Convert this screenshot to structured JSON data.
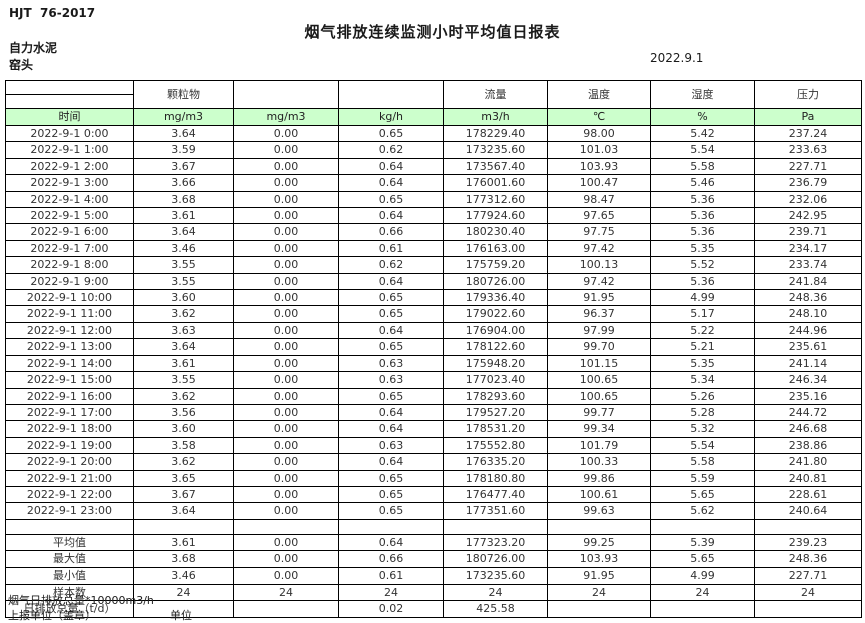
{
  "page": {
    "standard_code": "HJT  76-2017",
    "title": "烟气排放连续监测小时平均值日报表",
    "company": "自力水泥",
    "monitor_point": "窑头",
    "date": "2022.9.1"
  },
  "colors": {
    "header_green": "#ccffcc",
    "border": "#000000"
  },
  "table": {
    "group_headers": [
      "",
      "颗粒物",
      "",
      "",
      "流量",
      "温度",
      "湿度",
      "压力"
    ],
    "unit_row": [
      "时间",
      "mg/m3",
      "mg/m3",
      "kg/h",
      "m3/h",
      "℃",
      "%",
      "Pa"
    ],
    "rows": [
      [
        "2022-9-1 0:00",
        "3.64",
        "0.00",
        "0.65",
        "178229.40",
        "98.00",
        "5.42",
        "237.24"
      ],
      [
        "2022-9-1 1:00",
        "3.59",
        "0.00",
        "0.62",
        "173235.60",
        "101.03",
        "5.54",
        "233.63"
      ],
      [
        "2022-9-1 2:00",
        "3.67",
        "0.00",
        "0.64",
        "173567.40",
        "103.93",
        "5.58",
        "227.71"
      ],
      [
        "2022-9-1 3:00",
        "3.66",
        "0.00",
        "0.64",
        "176001.60",
        "100.47",
        "5.46",
        "236.79"
      ],
      [
        "2022-9-1 4:00",
        "3.68",
        "0.00",
        "0.65",
        "177312.60",
        "98.47",
        "5.36",
        "232.06"
      ],
      [
        "2022-9-1 5:00",
        "3.61",
        "0.00",
        "0.64",
        "177924.60",
        "97.65",
        "5.36",
        "242.95"
      ],
      [
        "2022-9-1 6:00",
        "3.64",
        "0.00",
        "0.66",
        "180230.40",
        "97.75",
        "5.36",
        "239.71"
      ],
      [
        "2022-9-1 7:00",
        "3.46",
        "0.00",
        "0.61",
        "176163.00",
        "97.42",
        "5.35",
        "234.17"
      ],
      [
        "2022-9-1 8:00",
        "3.55",
        "0.00",
        "0.62",
        "175759.20",
        "100.13",
        "5.52",
        "233.74"
      ],
      [
        "2022-9-1 9:00",
        "3.55",
        "0.00",
        "0.64",
        "180726.00",
        "97.42",
        "5.36",
        "241.84"
      ],
      [
        "2022-9-1 10:00",
        "3.60",
        "0.00",
        "0.65",
        "179336.40",
        "91.95",
        "4.99",
        "248.36"
      ],
      [
        "2022-9-1 11:00",
        "3.62",
        "0.00",
        "0.65",
        "179022.60",
        "96.37",
        "5.17",
        "248.10"
      ],
      [
        "2022-9-1 12:00",
        "3.63",
        "0.00",
        "0.64",
        "176904.00",
        "97.99",
        "5.22",
        "244.96"
      ],
      [
        "2022-9-1 13:00",
        "3.64",
        "0.00",
        "0.65",
        "178122.60",
        "99.70",
        "5.21",
        "235.61"
      ],
      [
        "2022-9-1 14:00",
        "3.61",
        "0.00",
        "0.63",
        "175948.20",
        "101.15",
        "5.35",
        "241.14"
      ],
      [
        "2022-9-1 15:00",
        "3.55",
        "0.00",
        "0.63",
        "177023.40",
        "100.65",
        "5.34",
        "246.34"
      ],
      [
        "2022-9-1 16:00",
        "3.62",
        "0.00",
        "0.65",
        "178293.60",
        "100.65",
        "5.26",
        "235.16"
      ],
      [
        "2022-9-1 17:00",
        "3.56",
        "0.00",
        "0.64",
        "179527.20",
        "99.77",
        "5.28",
        "244.72"
      ],
      [
        "2022-9-1 18:00",
        "3.60",
        "0.00",
        "0.64",
        "178531.20",
        "99.34",
        "5.32",
        "246.68"
      ],
      [
        "2022-9-1 19:00",
        "3.58",
        "0.00",
        "0.63",
        "175552.80",
        "101.79",
        "5.54",
        "238.86"
      ],
      [
        "2022-9-1 20:00",
        "3.62",
        "0.00",
        "0.64",
        "176335.20",
        "100.33",
        "5.58",
        "241.80"
      ],
      [
        "2022-9-1 21:00",
        "3.65",
        "0.00",
        "0.65",
        "178180.80",
        "99.86",
        "5.59",
        "240.81"
      ],
      [
        "2022-9-1 22:00",
        "3.67",
        "0.00",
        "0.65",
        "176477.40",
        "100.61",
        "5.65",
        "228.61"
      ],
      [
        "2022-9-1 23:00",
        "3.64",
        "0.00",
        "0.65",
        "177351.60",
        "99.63",
        "5.62",
        "240.64"
      ]
    ],
    "summary": [
      [
        "平均值",
        "3.61",
        "0.00",
        "0.64",
        "177323.20",
        "99.25",
        "5.39",
        "239.23"
      ],
      [
        "最大值",
        "3.68",
        "0.00",
        "0.66",
        "180726.00",
        "103.93",
        "5.65",
        "248.36"
      ],
      [
        "最小值",
        "3.46",
        "0.00",
        "0.61",
        "173235.60",
        "91.95",
        "4.99",
        "227.71"
      ],
      [
        "样本数",
        "24",
        "24",
        "24",
        "24",
        "24",
        "24",
        "24"
      ],
      [
        "日排放总量（t/d）",
        "",
        "",
        "0.02",
        "425.58",
        "",
        "",
        ""
      ]
    ]
  },
  "footer": {
    "note": "烟气日排放总量*10000m3/h",
    "report_unit_label": "上报单位（盖章）",
    "unit_label": "单位"
  }
}
